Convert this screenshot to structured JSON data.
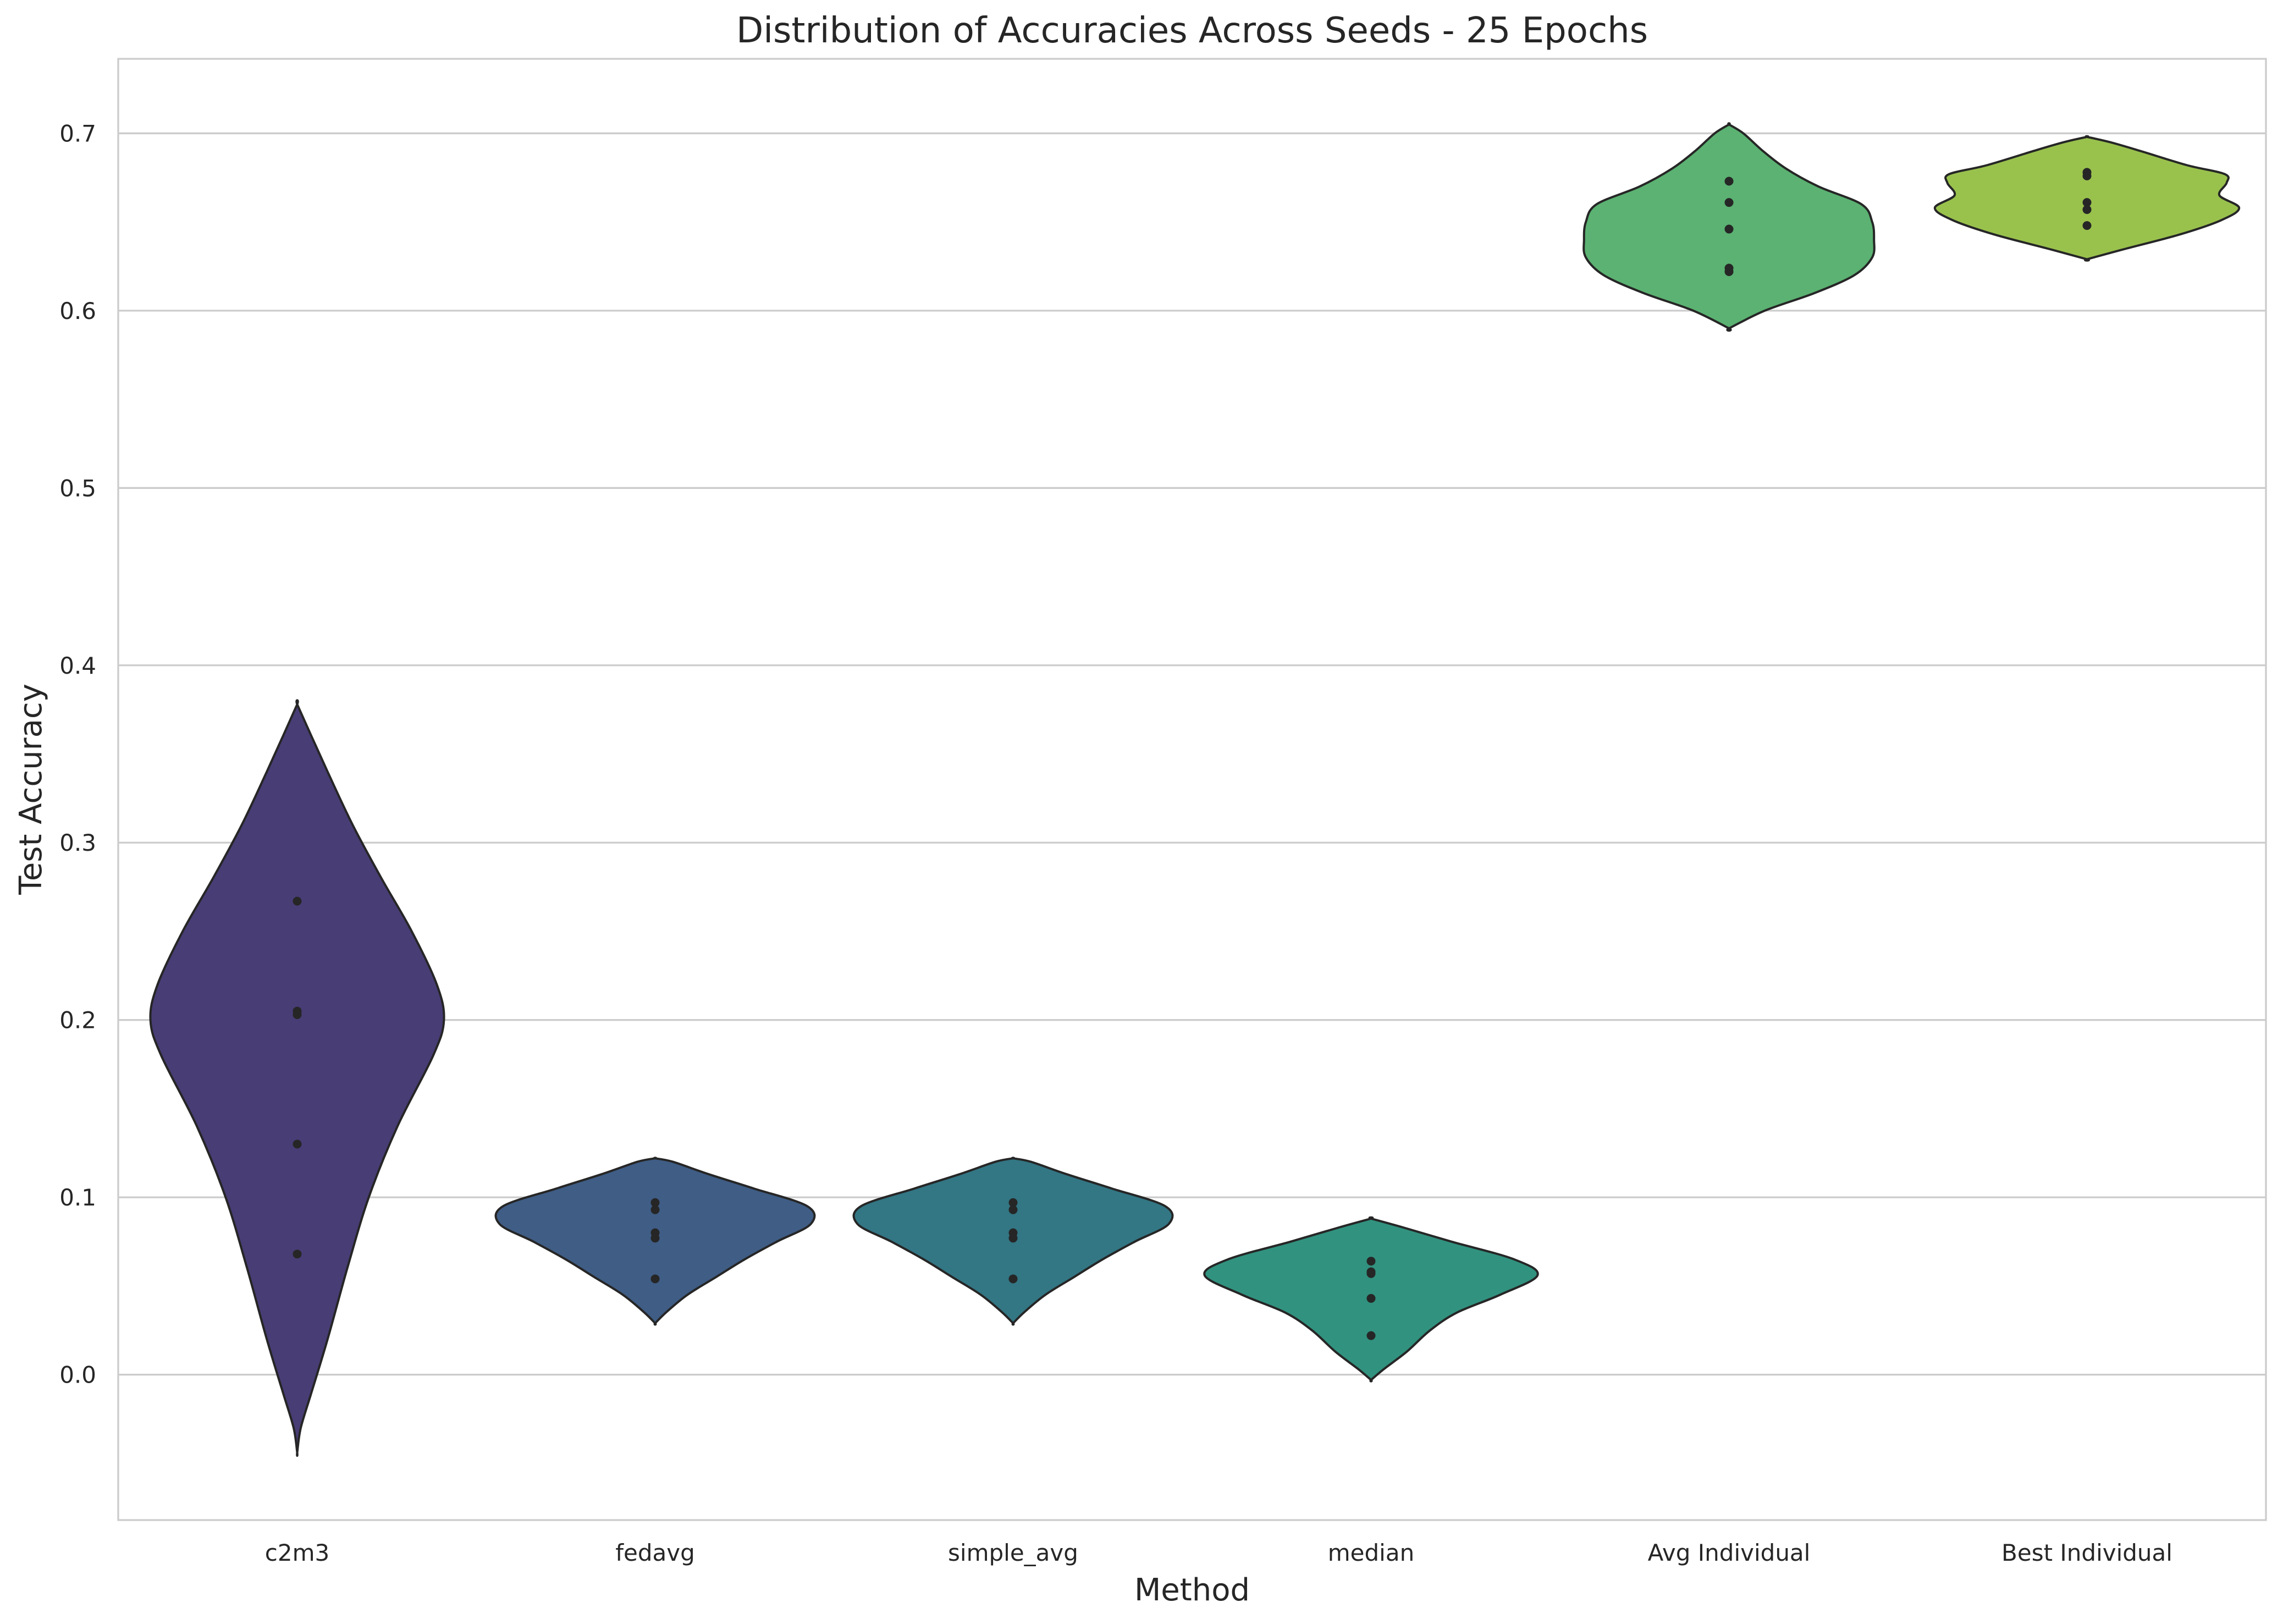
{
  "chart_data": {
    "type": "violin",
    "title": "Distribution of Accuracies Across Seeds - 25 Epochs",
    "xlabel": "Method",
    "ylabel": "Test Accuracy",
    "ylim": [
      -0.082,
      0.742
    ],
    "y_ticks": [
      0.0,
      0.1,
      0.2,
      0.3,
      0.4,
      0.5,
      0.6,
      0.7
    ],
    "y_tick_labels": [
      "0.0",
      "0.1",
      "0.2",
      "0.3",
      "0.4",
      "0.5",
      "0.6",
      "0.7"
    ],
    "grid": "horizontal",
    "categories": [
      "c2m3",
      "fedavg",
      "simple_avg",
      "median",
      "Avg Individual",
      "Best Individual"
    ],
    "series": [
      {
        "category": "c2m3",
        "color": "#483d75",
        "points": [
          0.267,
          0.205,
          0.203,
          0.13,
          0.068
        ],
        "profile": [
          [
            -0.044,
            0.0
          ],
          [
            -0.03,
            0.02
          ],
          [
            -0.01,
            0.08
          ],
          [
            0.02,
            0.17
          ],
          [
            0.06,
            0.28
          ],
          [
            0.1,
            0.4
          ],
          [
            0.14,
            0.56
          ],
          [
            0.18,
            0.76
          ],
          [
            0.2,
            0.82
          ],
          [
            0.22,
            0.78
          ],
          [
            0.25,
            0.64
          ],
          [
            0.28,
            0.47
          ],
          [
            0.31,
            0.31
          ],
          [
            0.34,
            0.17
          ],
          [
            0.36,
            0.08
          ],
          [
            0.378,
            0.0
          ]
        ]
      },
      {
        "category": "fedavg",
        "color": "#3f5d85",
        "points": [
          0.097,
          0.093,
          0.08,
          0.077,
          0.054
        ],
        "profile": [
          [
            0.029,
            0.0
          ],
          [
            0.035,
            0.06
          ],
          [
            0.045,
            0.18
          ],
          [
            0.055,
            0.34
          ],
          [
            0.065,
            0.5
          ],
          [
            0.075,
            0.68
          ],
          [
            0.085,
            0.87
          ],
          [
            0.095,
            0.85
          ],
          [
            0.105,
            0.55
          ],
          [
            0.113,
            0.3
          ],
          [
            0.12,
            0.1
          ],
          [
            0.122,
            0.0
          ]
        ]
      },
      {
        "category": "simple_avg",
        "color": "#337684",
        "points": [
          0.097,
          0.093,
          0.08,
          0.077,
          0.054
        ],
        "profile": [
          [
            0.029,
            0.0
          ],
          [
            0.035,
            0.06
          ],
          [
            0.045,
            0.18
          ],
          [
            0.055,
            0.34
          ],
          [
            0.065,
            0.5
          ],
          [
            0.075,
            0.68
          ],
          [
            0.085,
            0.87
          ],
          [
            0.095,
            0.85
          ],
          [
            0.105,
            0.55
          ],
          [
            0.113,
            0.3
          ],
          [
            0.12,
            0.1
          ],
          [
            0.122,
            0.0
          ]
        ]
      },
      {
        "category": "median",
        "color": "#31927f",
        "points": [
          0.064,
          0.058,
          0.057,
          0.043,
          0.022
        ],
        "profile": [
          [
            -0.003,
            0.0
          ],
          [
            0.003,
            0.07
          ],
          [
            0.013,
            0.2
          ],
          [
            0.025,
            0.33
          ],
          [
            0.035,
            0.48
          ],
          [
            0.045,
            0.72
          ],
          [
            0.056,
            0.93
          ],
          [
            0.065,
            0.8
          ],
          [
            0.075,
            0.45
          ],
          [
            0.083,
            0.18
          ],
          [
            0.088,
            0.0
          ]
        ]
      },
      {
        "category": "Avg Individual",
        "color": "#5bb272",
        "points": [
          0.673,
          0.661,
          0.646,
          0.624,
          0.622
        ],
        "profile": [
          [
            0.59,
            0.0
          ],
          [
            0.6,
            0.2
          ],
          [
            0.61,
            0.48
          ],
          [
            0.62,
            0.7
          ],
          [
            0.63,
            0.8
          ],
          [
            0.64,
            0.81
          ],
          [
            0.65,
            0.8
          ],
          [
            0.66,
            0.74
          ],
          [
            0.67,
            0.5
          ],
          [
            0.68,
            0.32
          ],
          [
            0.69,
            0.19
          ],
          [
            0.7,
            0.08
          ],
          [
            0.705,
            0.0
          ]
        ]
      },
      {
        "category": "Best Individual",
        "color": "#99c24d",
        "points": [
          0.678,
          0.676,
          0.661,
          0.657,
          0.648
        ],
        "profile": [
          [
            0.629,
            0.0
          ],
          [
            0.635,
            0.22
          ],
          [
            0.643,
            0.52
          ],
          [
            0.651,
            0.75
          ],
          [
            0.658,
            0.85
          ],
          [
            0.665,
            0.74
          ],
          [
            0.672,
            0.78
          ],
          [
            0.677,
            0.77
          ],
          [
            0.682,
            0.56
          ],
          [
            0.69,
            0.3
          ],
          [
            0.695,
            0.13
          ],
          [
            0.698,
            0.0
          ]
        ]
      }
    ]
  }
}
